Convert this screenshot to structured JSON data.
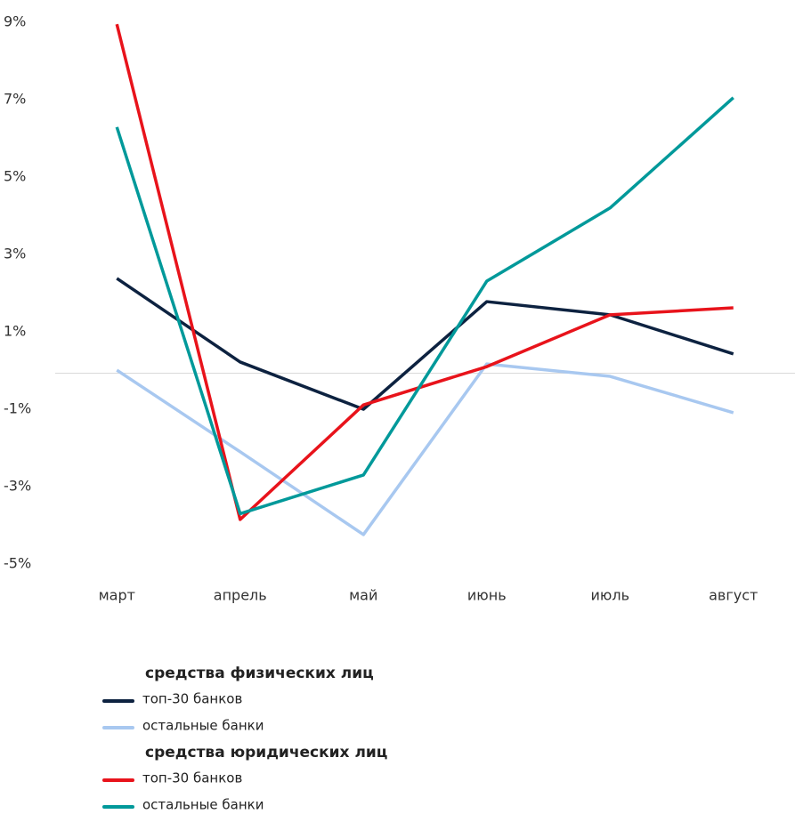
{
  "chart_data": {
    "type": "line",
    "categories": [
      "март",
      "апрель",
      "май",
      "июнь",
      "июль",
      "август"
    ],
    "ylim": [
      -5,
      9
    ],
    "yticks": [
      {
        "value": 9,
        "label": "9%"
      },
      {
        "value": 7,
        "label": "7%"
      },
      {
        "value": 5,
        "label": "5%"
      },
      {
        "value": 3,
        "label": "3%"
      },
      {
        "value": 1,
        "label": "1%"
      },
      {
        "value": -1,
        "label": "-1%"
      },
      {
        "value": -3,
        "label": "-3%"
      },
      {
        "value": -5,
        "label": "-5%"
      }
    ],
    "legend_groups": [
      "средства физических лиц",
      "средства юридических лиц"
    ],
    "series": [
      {
        "name": "топ-30 банков",
        "color": "#0d2240",
        "values": [
          2.38,
          0.22,
          -1.0,
          1.78,
          1.44,
          0.43
        ]
      },
      {
        "name": "остальные банки",
        "color": "#a8c8f0",
        "values": [
          0.01,
          -2.1,
          -4.24,
          0.17,
          -0.15,
          -1.09
        ]
      },
      {
        "name": "топ-30 банков",
        "color": "#e8131b",
        "values": [
          8.95,
          -3.85,
          -0.89,
          0.1,
          1.44,
          1.62
        ]
      },
      {
        "name": "остальные банки",
        "color": "#00999a",
        "values": [
          6.29,
          -3.7,
          -2.7,
          2.31,
          4.2,
          7.05
        ]
      }
    ]
  }
}
